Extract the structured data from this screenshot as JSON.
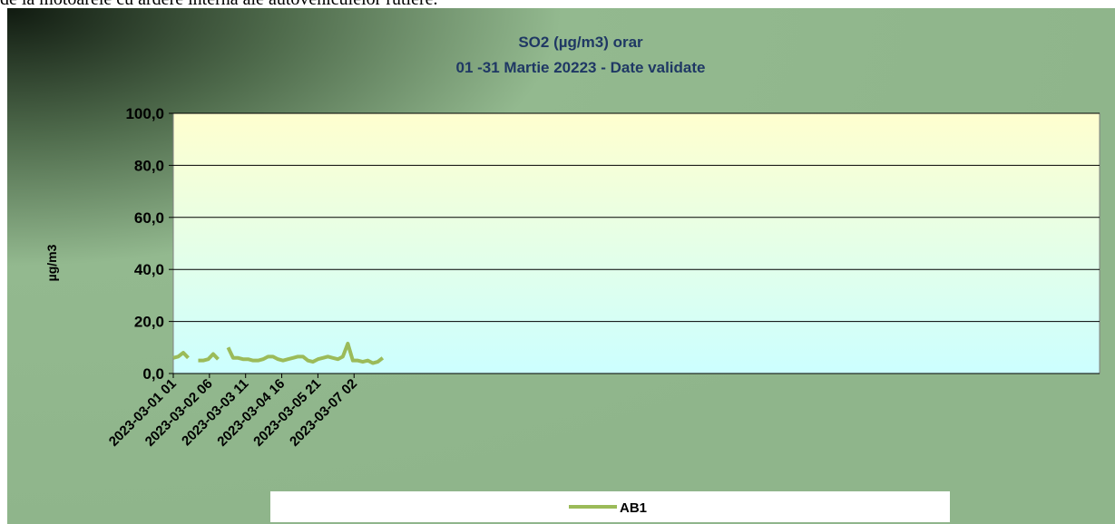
{
  "header_text": "de la motoarele cu ardere internă ale autovehiculelor rutiere.",
  "chart_data": {
    "type": "line",
    "title": "SO2 (µg/m3) orar",
    "subtitle": "01 -31 Martie 20223  - Date validate",
    "y_label": "µg/m3",
    "x": [
      0,
      4,
      8,
      12,
      16,
      20,
      24,
      28,
      32,
      36,
      40,
      44,
      48,
      52,
      56,
      60,
      64,
      68,
      72,
      76,
      80,
      84,
      88,
      92,
      96,
      100,
      104,
      108,
      112,
      116,
      120,
      124,
      128,
      132,
      136,
      140,
      144,
      148,
      152,
      156,
      160,
      164,
      168
    ],
    "series": [
      {
        "name": "AB1",
        "color": "#9bbb59",
        "values": [
          6,
          6.5,
          8,
          6,
          null,
          5,
          5,
          5.5,
          7.5,
          5.5,
          null,
          10,
          6,
          6,
          5.5,
          5.5,
          5,
          5,
          5.5,
          6.5,
          6.5,
          5.5,
          5,
          5.5,
          6,
          6.5,
          6.5,
          5,
          4.5,
          5.5,
          6,
          6.5,
          6,
          5.5,
          6.5,
          11.5,
          5,
          5,
          4.5,
          5,
          4,
          4.5,
          6
        ]
      }
    ],
    "xlim": [
      0,
      743
    ],
    "xticks": [
      {
        "value": 0,
        "label": "2023-03-01 01"
      },
      {
        "value": 29,
        "label": "2023-03-02 06"
      },
      {
        "value": 58,
        "label": "2023-03-03 11"
      },
      {
        "value": 87,
        "label": "2023-03-04 16"
      },
      {
        "value": 116,
        "label": "2023-03-05 21"
      },
      {
        "value": 145,
        "label": "2023-03-07 02"
      }
    ],
    "ylim": [
      0,
      100
    ],
    "yticks": [
      {
        "value": 0,
        "label": "0,0"
      },
      {
        "value": 20,
        "label": "20,0"
      },
      {
        "value": 40,
        "label": "40,0"
      },
      {
        "value": 60,
        "label": "60,0"
      },
      {
        "value": 80,
        "label": "80,0"
      },
      {
        "value": 100,
        "label": "100,0"
      }
    ],
    "grid": true,
    "legend": "bottom"
  }
}
